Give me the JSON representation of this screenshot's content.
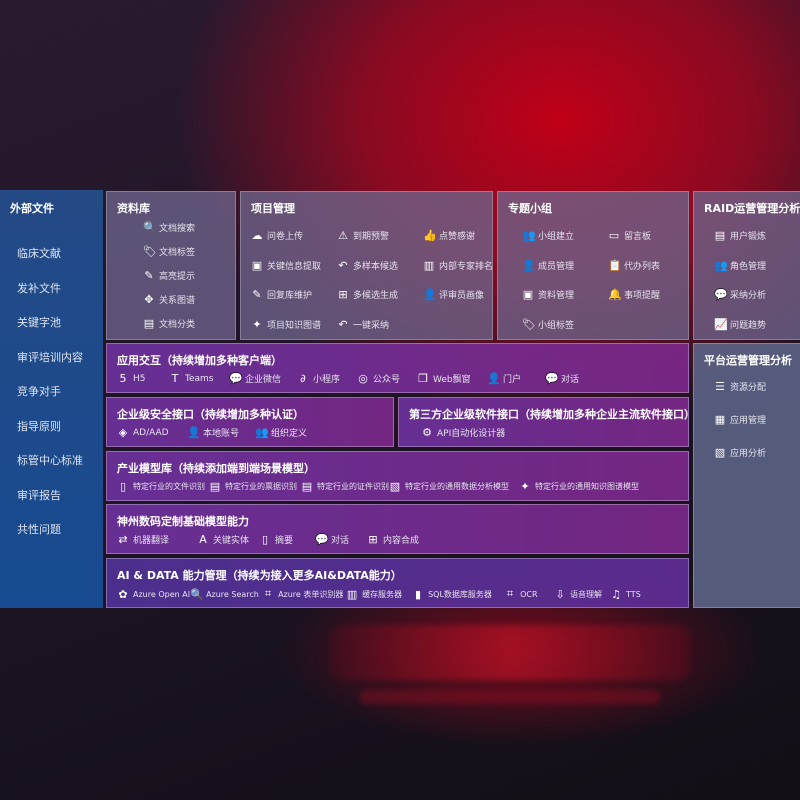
{
  "left": {
    "title": "外部文件",
    "items": [
      "临床文献",
      "发补文件",
      "关键字池",
      "审评培训内容",
      "竞争对手",
      "指导原则",
      "标管中心标准",
      "审评报告",
      "共性问题"
    ]
  },
  "library": {
    "title": "资料库",
    "items": [
      {
        "icon": "document-search-icon",
        "label": "文档搜索"
      },
      {
        "icon": "tag-icon",
        "label": "文档标签"
      },
      {
        "icon": "highlight-pen-icon",
        "label": "高亮提示"
      },
      {
        "icon": "relation-graph-icon",
        "label": "关系图谱"
      },
      {
        "icon": "document-classify-icon",
        "label": "文档分类"
      }
    ]
  },
  "project": {
    "title": "项目管理",
    "items": [
      {
        "icon": "cloud-upload-icon",
        "label": "问卷上传"
      },
      {
        "icon": "alarm-icon",
        "label": "到期预警"
      },
      {
        "icon": "thumbs-up-icon",
        "label": "点赞感谢"
      },
      {
        "icon": "info-extract-icon",
        "label": "关键信息提取"
      },
      {
        "icon": "reply-icon",
        "label": "多样本候选"
      },
      {
        "icon": "ranking-icon",
        "label": "内部专家排名"
      },
      {
        "icon": "edit-icon",
        "label": "回复库维护"
      },
      {
        "icon": "puzzle-icon",
        "label": "多候选生成"
      },
      {
        "icon": "user-icon",
        "label": "评审员画像"
      },
      {
        "icon": "knowledge-graph-icon",
        "label": "项目知识图谱"
      },
      {
        "icon": "reply-icon",
        "label": "一键采纳"
      }
    ]
  },
  "group": {
    "title": "专题小组",
    "items": [
      {
        "icon": "group-icon",
        "label": "小组建立"
      },
      {
        "icon": "bbs-icon",
        "label": "留言板"
      },
      {
        "icon": "member-icon",
        "label": "成员管理"
      },
      {
        "icon": "clipboard-icon",
        "label": "代办列表"
      },
      {
        "icon": "folder-icon",
        "label": "资料管理"
      },
      {
        "icon": "bell-icon",
        "label": "事项提醒"
      },
      {
        "icon": "tag-icon",
        "label": "小组标签"
      }
    ]
  },
  "raid": {
    "title": "RAID运营管理分析",
    "items": [
      {
        "icon": "id-card-icon",
        "label": "用户锻炼"
      },
      {
        "icon": "users-icon",
        "label": "角色管理"
      },
      {
        "icon": "qa-icon",
        "label": "采纳分析"
      },
      {
        "icon": "trend-icon",
        "label": "问题趋势"
      }
    ]
  },
  "platform": {
    "title": "平台运营管理分析",
    "items": [
      {
        "icon": "checklist-icon",
        "label": "资源分配"
      },
      {
        "icon": "apps-icon",
        "label": "应用管理"
      },
      {
        "icon": "analytics-icon",
        "label": "应用分析"
      }
    ]
  },
  "interaction": {
    "title": "应用交互（持续增加多种客户端）",
    "items": [
      {
        "icon": "html5-icon",
        "label": "H5"
      },
      {
        "icon": "teams-icon",
        "label": "Teams"
      },
      {
        "icon": "wecom-icon",
        "label": "企业微信"
      },
      {
        "icon": "mini-program-icon",
        "label": "小程序"
      },
      {
        "icon": "official-account-icon",
        "label": "公众号"
      },
      {
        "icon": "web-window-icon",
        "label": "Web飘窗"
      },
      {
        "icon": "portal-icon",
        "label": "门户"
      },
      {
        "icon": "chat-icon",
        "label": "对话"
      }
    ]
  },
  "security": {
    "title": "企业级安全接口（持续增加多种认证）",
    "items": [
      {
        "icon": "aad-icon",
        "label": "AD/AAD"
      },
      {
        "icon": "local-account-icon",
        "label": "本地账号"
      },
      {
        "icon": "organization-icon",
        "label": "组织定义"
      }
    ]
  },
  "thirdparty": {
    "title": "第三方企业级软件接口（持续增加多种企业主流软件接口）",
    "items": [
      {
        "icon": "gear-icon",
        "label": "API自动化设计器"
      }
    ]
  },
  "industry": {
    "title": "产业模型库（持续添加端到端场景模型）",
    "items": [
      {
        "icon": "file-icon",
        "label": "特定行业的文件识别"
      },
      {
        "icon": "receipt-icon",
        "label": "特定行业的票据识别"
      },
      {
        "icon": "id-card-icon",
        "label": "特定行业的证件识别"
      },
      {
        "icon": "data-analysis-icon",
        "label": "特定行业的通用数据分析模型"
      },
      {
        "icon": "knowledge-graph-icon",
        "label": "特定行业的通用知识图谱模型"
      }
    ]
  },
  "base": {
    "title": "神州数码定制基础模型能力",
    "items": [
      {
        "icon": "translate-icon",
        "label": "机器翻译"
      },
      {
        "icon": "entity-icon",
        "label": "关键实体"
      },
      {
        "icon": "summary-icon",
        "label": "摘要"
      },
      {
        "icon": "chat-icon",
        "label": "对话"
      },
      {
        "icon": "compose-icon",
        "label": "内容合成"
      }
    ]
  },
  "aidata": {
    "title": "AI & DATA 能力管理（持续为接入更多AI&DATA能力）",
    "items": [
      {
        "icon": "openai-icon",
        "label": "Azure Open AI"
      },
      {
        "icon": "search-icon",
        "label": "Azure Search"
      },
      {
        "icon": "form-recognizer-icon",
        "label": "Azure 表单识别器"
      },
      {
        "icon": "cache-server-icon",
        "label": "缓存服务器"
      },
      {
        "icon": "sql-icon",
        "label": "SQL数据库服务器"
      },
      {
        "icon": "ocr-icon",
        "label": "OCR"
      },
      {
        "icon": "speech-icon",
        "label": "语音理解"
      },
      {
        "icon": "tts-icon",
        "label": "TTS"
      }
    ]
  }
}
